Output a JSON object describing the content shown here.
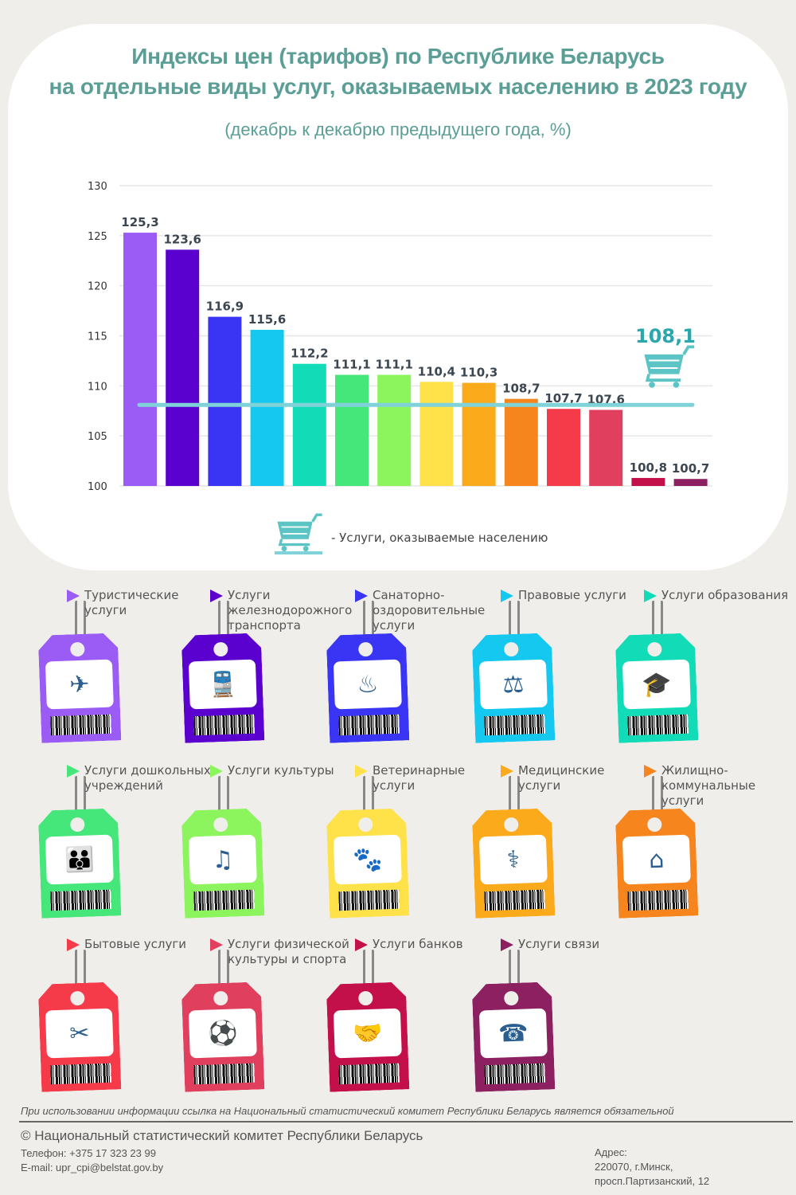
{
  "header": {
    "title_line1": "Индексы цен (тарифов) по Республике Беларусь",
    "title_line2": "на отдельные виды услуг, оказываемых населению в 2023 году",
    "subtitle": "(декабрь к декабрю предыдущего года, %)"
  },
  "chart_data": {
    "type": "bar",
    "title": "Индексы цен (тарифов) по Республике Беларусь на отдельные виды услуг, оказываемых населению в 2023 году",
    "subtitle": "(декабрь к декабрю предыдущего года, %)",
    "categories": [
      "Туристические услуги",
      "Услуги железнодорожного транспорта",
      "Санаторно-оздоровительные услуги",
      "Правовые услуги",
      "Услуги образования",
      "Услуги дошкольных учреждений",
      "Услуги культуры",
      "Ветеринарные услуги",
      "Медицинские услуги",
      "Жилищно-коммунальные услуги",
      "Бытовые услуги",
      "Услуги физической культуры и спорта",
      "Услуги банков",
      "Услуги связи"
    ],
    "values": [
      125.3,
      123.6,
      116.9,
      115.6,
      112.2,
      111.1,
      111.1,
      110.4,
      110.3,
      108.7,
      107.7,
      107.6,
      100.8,
      100.7
    ],
    "value_labels": [
      "125,3",
      "123,6",
      "116,9",
      "115,6",
      "112,2",
      "111,1",
      "111,1",
      "110,4",
      "110,3",
      "108,7",
      "107,7",
      "107,6",
      "100,8",
      "100,7"
    ],
    "colors": [
      "#9b5cf6",
      "#5a00cf",
      "#3a35f5",
      "#14c8f0",
      "#12dcb8",
      "#45e67a",
      "#8cf55e",
      "#ffe14a",
      "#fbaa1c",
      "#f7851e",
      "#f53a4a",
      "#e0405e",
      "#c4104a",
      "#8c2060"
    ],
    "ylim": [
      100,
      130
    ],
    "yticks": [
      100,
      105,
      110,
      115,
      120,
      125,
      130
    ],
    "grid": true,
    "reference_line": {
      "value": 108.1,
      "label": "108,1",
      "color": "#7fd3d8",
      "label_color": "#2aa6ad",
      "icon": "shopping-cart-icon"
    },
    "legend": {
      "position": "bottom",
      "icon": "shopping-cart-icon",
      "text": "- Услуги, оказываемые населению"
    }
  },
  "tags": [
    {
      "label": "Туристические услуги",
      "icon": "✈",
      "icon_name": "luggage-globe-icon"
    },
    {
      "label": "Услуги железнодорожного транспорта",
      "icon": "🚆",
      "icon_name": "train-icon"
    },
    {
      "label": "Санаторно-оздоровительные услуги",
      "icon": "♨",
      "icon_name": "spa-icon"
    },
    {
      "label": "Правовые услуги",
      "icon": "⚖",
      "icon_name": "scales-icon"
    },
    {
      "label": "Услуги образования",
      "icon": "🎓",
      "icon_name": "books-cap-icon"
    },
    {
      "label": "Услуги дошкольных учреждений",
      "icon": "👪",
      "icon_name": "family-icon"
    },
    {
      "label": "Услуги культуры",
      "icon": "♫",
      "icon_name": "theatre-icon"
    },
    {
      "label": "Ветеринарные услуги",
      "icon": "🐾",
      "icon_name": "pets-icon"
    },
    {
      "label": "Медицинские услуги",
      "icon": "⚕",
      "icon_name": "medical-icon"
    },
    {
      "label": "Жилищно-коммунальные услуги",
      "icon": "⌂",
      "icon_name": "house-tools-icon"
    },
    {
      "label": "Бытовые услуги",
      "icon": "✂",
      "icon_name": "household-services-icon"
    },
    {
      "label": "Услуги физической культуры и спорта",
      "icon": "⚽",
      "icon_name": "sports-icon"
    },
    {
      "label": "Услуги банков",
      "icon": "🤝",
      "icon_name": "handshake-bank-icon"
    },
    {
      "label": "Услуги связи",
      "icon": "☎",
      "icon_name": "communication-icon"
    }
  ],
  "footer": {
    "disclaimer": "При использовании информации ссылка на Национальный статистический комитет Республики Беларусь является обязательной",
    "copyright": "© Национальный статистический комитет Республики Беларусь",
    "phone": "Телефон: +375 17 323 23 99",
    "email": "E-mail: upr_cpi@belstat.gov.by",
    "address_label": "Адрес:",
    "address_line1": "220070, г.Минск,",
    "address_line2": "просп.Партизанский, 12"
  }
}
